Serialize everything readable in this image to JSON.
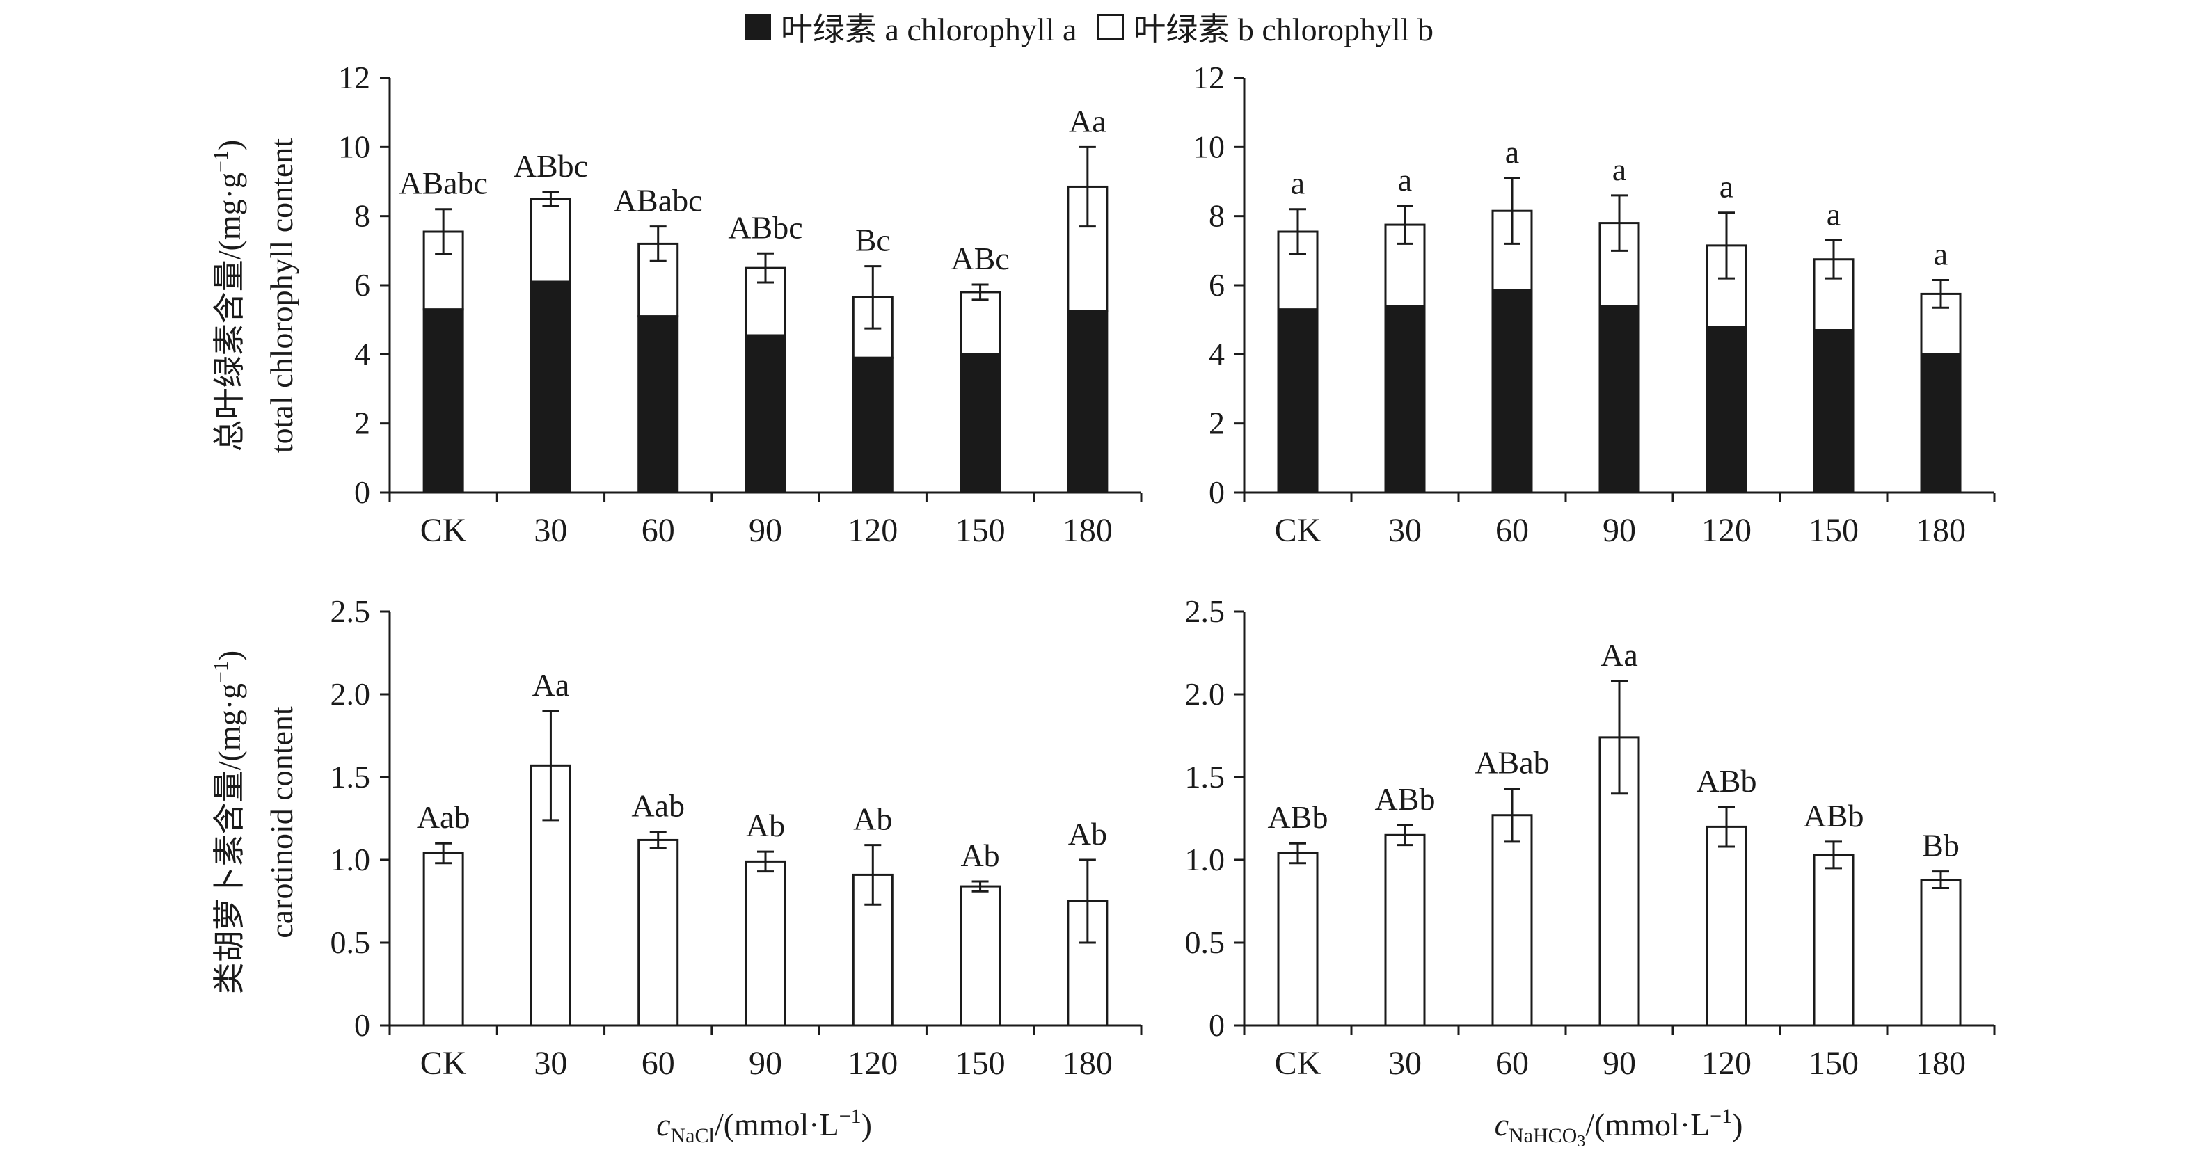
{
  "legend": {
    "a_label": "叶绿素 a chlorophyll a",
    "b_label": "叶绿素 b chlorophyll b",
    "a_color": "#1a1a1a",
    "b_color": "#ffffff"
  },
  "y_titles": {
    "chlorophyll_cn": "总叶绿素含量/(mg·g",
    "chlorophyll_en": "total chlorophyll content",
    "carotenoid_cn": "类胡萝卜素含量/(mg·g",
    "carotenoid_en": "carotinoid content",
    "unit_sup": "−1",
    "unit_close": ")"
  },
  "x_titles": {
    "nacl_var": "c",
    "nacl_sub": "NaCl",
    "nacl_unit": "/(mmol·L",
    "nacl_sup": "−1",
    "nacl_close": ")",
    "nahco3_var": "c",
    "nahco3_sub": "NaHCO",
    "nahco3_sub2": "3",
    "nahco3_unit": "/(mmol·L",
    "nahco3_sup": "−1",
    "nahco3_close": ")"
  },
  "chart_data": [
    {
      "id": "nacl-chlorophyll",
      "type": "bar",
      "stacked": true,
      "categories": [
        "CK",
        "30",
        "60",
        "90",
        "120",
        "150",
        "180"
      ],
      "series": [
        {
          "name": "叶绿素 a chlorophyll a",
          "values": [
            5.3,
            6.1,
            5.1,
            4.55,
            3.9,
            4.0,
            5.25
          ]
        },
        {
          "name": "叶绿素 b chlorophyll b",
          "values": [
            2.25,
            2.4,
            2.1,
            1.95,
            1.75,
            1.8,
            3.6
          ]
        }
      ],
      "errors": [
        0.65,
        0.2,
        0.5,
        0.42,
        0.9,
        0.22,
        1.15
      ],
      "labels": [
        "ABabc",
        "ABbc",
        "ABabc",
        "ABbc",
        "Bc",
        "ABc",
        "Aa"
      ],
      "ylim": [
        0,
        12
      ],
      "yticks": [
        "0",
        "2",
        "4",
        "6",
        "8",
        "10",
        "12"
      ]
    },
    {
      "id": "nahco3-chlorophyll",
      "type": "bar",
      "stacked": true,
      "categories": [
        "CK",
        "30",
        "60",
        "90",
        "120",
        "150",
        "180"
      ],
      "series": [
        {
          "name": "叶绿素 a chlorophyll a",
          "values": [
            5.3,
            5.4,
            5.85,
            5.4,
            4.8,
            4.7,
            4.0
          ]
        },
        {
          "name": "叶绿素 b chlorophyll b",
          "values": [
            2.25,
            2.35,
            2.3,
            2.4,
            2.35,
            2.05,
            1.75
          ]
        }
      ],
      "errors": [
        0.65,
        0.55,
        0.95,
        0.8,
        0.95,
        0.55,
        0.4
      ],
      "labels": [
        "a",
        "a",
        "a",
        "a",
        "a",
        "a",
        "a"
      ],
      "ylim": [
        0,
        12
      ],
      "yticks": [
        "0",
        "2",
        "4",
        "6",
        "8",
        "10",
        "12"
      ]
    },
    {
      "id": "nacl-carotenoid",
      "type": "bar",
      "stacked": false,
      "categories": [
        "CK",
        "30",
        "60",
        "90",
        "120",
        "150",
        "180"
      ],
      "series": [
        {
          "name": "carotinoid content",
          "values": [
            1.04,
            1.57,
            1.12,
            0.99,
            0.91,
            0.84,
            0.75
          ]
        }
      ],
      "errors": [
        0.06,
        0.33,
        0.05,
        0.06,
        0.18,
        0.03,
        0.25
      ],
      "labels": [
        "Aab",
        "Aa",
        "Aab",
        "Ab",
        "Ab",
        "Ab",
        "Ab"
      ],
      "ylim": [
        0,
        2.5
      ],
      "yticks": [
        "0",
        "0.5",
        "1.0",
        "1.5",
        "2.0",
        "2.5"
      ]
    },
    {
      "id": "nahco3-carotenoid",
      "type": "bar",
      "stacked": false,
      "categories": [
        "CK",
        "30",
        "60",
        "90",
        "120",
        "150",
        "180"
      ],
      "series": [
        {
          "name": "carotinoid content",
          "values": [
            1.04,
            1.15,
            1.27,
            1.74,
            1.2,
            1.03,
            0.88
          ]
        }
      ],
      "errors": [
        0.06,
        0.06,
        0.16,
        0.34,
        0.12,
        0.08,
        0.05
      ],
      "labels": [
        "ABb",
        "ABb",
        "ABab",
        "Aa",
        "ABb",
        "ABb",
        "Bb"
      ],
      "ylim": [
        0,
        2.5
      ],
      "yticks": [
        "0",
        "0.5",
        "1.0",
        "1.5",
        "2.0",
        "2.5"
      ]
    }
  ]
}
